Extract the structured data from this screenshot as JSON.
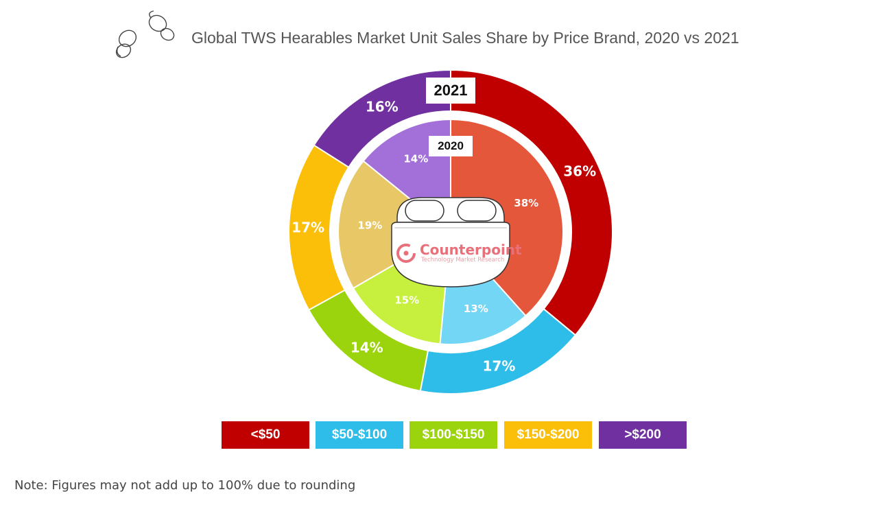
{
  "title": "Global TWS Hearables Market Unit Sales Share by Price Brand, 2020 vs 2021",
  "note": "Note: Figures may not add up to 100% due to rounding",
  "brand": {
    "name": "Counterpoint",
    "tagline": "Technology Market Research"
  },
  "legend": [
    {
      "label": "<$50",
      "color": "#c00000"
    },
    {
      "label": "$50-$100",
      "color": "#2ebce8"
    },
    {
      "label": "$100-$150",
      "color": "#9bd40c"
    },
    {
      "label": "$150-$200",
      "color": "#fbbf09"
    },
    {
      "label": ">$200",
      "color": "#7030a0"
    }
  ],
  "chart_data": {
    "type": "pie",
    "title": "Global TWS Hearables Market Unit Sales Share by Price Brand, 2020 vs 2021",
    "categories": [
      "<$50",
      "$50-$100",
      "$100-$150",
      "$150-$200",
      ">$200"
    ],
    "series": [
      {
        "name": "2021",
        "ring": "outer",
        "values": [
          36,
          17,
          14,
          17,
          16
        ],
        "labels": [
          "36%",
          "17%",
          "14%",
          "17%",
          "16%"
        ],
        "colors": [
          "#c00000",
          "#2ebce8",
          "#9bd40c",
          "#fbbf09",
          "#7030a0"
        ]
      },
      {
        "name": "2020",
        "ring": "inner",
        "values": [
          38,
          13,
          15,
          19,
          14
        ],
        "labels": [
          "38%",
          "13%",
          "15%",
          "19%",
          "14%"
        ],
        "colors": [
          "#e5573b",
          "#74d6f5",
          "#c6ef3e",
          "#e8c766",
          "#a36fd8"
        ]
      }
    ],
    "legend": "bottom"
  }
}
